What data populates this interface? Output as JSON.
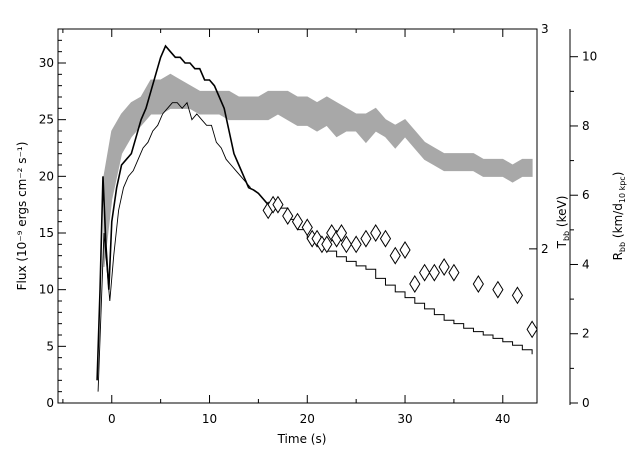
{
  "chart_data": {
    "type": "line",
    "title": "",
    "xlabel": "Time (s)",
    "ylabel": "Flux (10⁻⁹ ergs cm⁻² s⁻¹)",
    "xlim": [
      -5.5,
      43.5
    ],
    "ylim": [
      0,
      33
    ],
    "x_ticks": [
      0,
      10,
      20,
      30,
      40
    ],
    "y_ticks": [
      0,
      5,
      10,
      15,
      20,
      25,
      30
    ],
    "right_axis_temperature": {
      "label_main": "T",
      "label_sub": "bb",
      "label_rest": " (keV)",
      "ticks": [
        {
          "value": 2,
          "label": "2"
        },
        {
          "value": 3,
          "label": "3"
        }
      ],
      "flux_equivalent": {
        "2": 13.6,
        "3": 33
      }
    },
    "right_axis_radius": {
      "label_main": "R",
      "label_sub": "bb",
      "label_mid": " (km/d",
      "label_sub2": "10 kpc",
      "label_end": ")",
      "ylim": [
        0,
        10.8
      ],
      "ticks": [
        0,
        2,
        4,
        6,
        8,
        10
      ]
    },
    "series": [
      {
        "style": "thick-black-line",
        "x": [
          -1.5,
          -1.2,
          -0.9,
          -0.6,
          -0.3,
          0,
          0.5,
          1,
          1.5,
          2,
          2.5,
          3,
          3.5,
          4,
          4.5,
          5,
          5.5,
          6,
          6.5,
          7,
          7.5,
          8,
          8.5,
          9,
          9.5,
          10,
          10.5,
          11,
          11.5,
          12,
          12.5,
          13,
          13.5,
          14,
          14.5,
          15,
          15.5,
          16
        ],
        "y": [
          2,
          10,
          20,
          14,
          10,
          16,
          19,
          21,
          21.5,
          22,
          23.5,
          25,
          26,
          27.5,
          29,
          30.5,
          31.5,
          31,
          30.5,
          30.5,
          30,
          30,
          29.5,
          29.5,
          28.5,
          28.5,
          28,
          27,
          26,
          24,
          22,
          21,
          20,
          19,
          18.8,
          18.5,
          18,
          17.5
        ]
      },
      {
        "style": "thin-black-line",
        "x": [
          -1.4,
          -1.1,
          -0.8,
          -0.5,
          -0.2,
          0.2,
          0.7,
          1.2,
          1.7,
          2.2,
          2.7,
          3.2,
          3.7,
          4.2,
          4.7,
          5.2,
          5.7,
          6.2,
          6.7,
          7.2,
          7.7,
          8.2,
          8.7,
          9.2,
          9.7,
          10.2,
          10.7,
          11.2,
          11.7,
          12.2,
          12.7,
          13.2,
          13.7,
          14.2
        ],
        "y": [
          1,
          8,
          15,
          12,
          9,
          13,
          17,
          19,
          20,
          20.5,
          21.5,
          22.5,
          23,
          24,
          24.5,
          25.5,
          26,
          26.5,
          26.5,
          26,
          26.5,
          25,
          25.5,
          25,
          24.5,
          24.5,
          23,
          22.5,
          21.5,
          21,
          20.5,
          20,
          19.5,
          19
        ]
      },
      {
        "style": "stepped",
        "x": [
          17,
          18,
          19,
          20,
          21,
          22,
          23,
          24,
          25,
          26,
          27,
          28,
          29,
          30,
          31,
          32,
          33,
          34,
          35,
          36,
          37,
          38,
          39,
          40,
          41,
          42,
          43
        ],
        "y": [
          17.2,
          16.2,
          15.3,
          14.5,
          13.9,
          13.4,
          12.9,
          12.5,
          12.1,
          11.8,
          11,
          10.4,
          9.8,
          9.3,
          8.8,
          8.3,
          7.8,
          7.3,
          7,
          6.6,
          6.3,
          6,
          5.7,
          5.4,
          5.1,
          4.7,
          4.3
        ]
      },
      {
        "style": "gray-band",
        "x": [
          -0.8,
          0,
          1,
          2,
          3,
          4,
          5,
          6,
          7,
          8,
          9,
          10,
          11,
          12,
          13,
          14,
          15,
          16,
          17,
          18,
          19,
          20,
          21,
          22,
          23,
          24,
          25,
          26,
          27,
          28,
          29,
          30,
          31,
          32,
          33,
          34,
          35,
          36,
          37,
          38,
          39,
          40,
          41,
          42,
          43
        ],
        "y_low": [
          12,
          18,
          22,
          23.5,
          24.5,
          25.5,
          25.5,
          26,
          26,
          26,
          25.5,
          25.5,
          25.5,
          25,
          25,
          25,
          25,
          25,
          25.5,
          25,
          24.5,
          24.5,
          24,
          24.5,
          23.5,
          24,
          24,
          23,
          24,
          23.5,
          22.5,
          23.5,
          22.5,
          21.5,
          21,
          20.5,
          20.5,
          20.5,
          20.5,
          20,
          20,
          20,
          19.5,
          20,
          20
        ],
        "y_high": [
          20,
          24,
          25.5,
          26.5,
          27,
          28.5,
          28.5,
          29,
          28.5,
          28,
          27.5,
          27.5,
          27.5,
          27.5,
          27,
          27,
          27,
          27.5,
          27.5,
          27.5,
          27,
          27,
          26.5,
          27,
          26.5,
          26,
          25.5,
          25.5,
          26,
          25,
          24.5,
          25,
          24,
          23,
          22.5,
          22,
          22,
          22,
          22,
          21.5,
          21.5,
          21.5,
          21,
          21.5,
          21.5
        ]
      },
      {
        "style": "diamonds",
        "x": [
          16,
          16.5,
          17,
          18,
          19,
          20,
          20.5,
          21,
          21.5,
          22,
          22.5,
          23,
          23.5,
          24,
          25,
          26,
          27,
          28,
          29,
          30,
          31,
          32,
          33,
          34,
          35,
          37.5,
          39.5,
          41.5,
          43
        ],
        "y": [
          17,
          17.5,
          17.5,
          16.5,
          16,
          15.5,
          14.5,
          14.5,
          14,
          14,
          15,
          14.5,
          15,
          14,
          14,
          14.5,
          15,
          14.5,
          13,
          13.5,
          10.5,
          11.5,
          11.5,
          12,
          11.5,
          10.5,
          10,
          9.5,
          6.5
        ]
      }
    ]
  }
}
